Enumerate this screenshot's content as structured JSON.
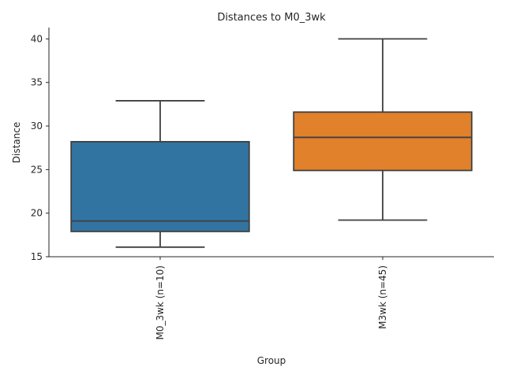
{
  "chart_data": {
    "type": "box",
    "title": "Distances to M0_3wk",
    "xlabel": "Group",
    "ylabel": "Distance",
    "ylim": [
      15,
      41.3
    ],
    "yticks": [
      15,
      20,
      25,
      30,
      35,
      40
    ],
    "categories": [
      "M0_3wk (n=10)",
      "M3wk (n=45)"
    ],
    "boxes": [
      {
        "category": "M0_3wk (n=10)",
        "whisker_low": 16.1,
        "q1": 17.9,
        "median": 19.1,
        "q3": 28.2,
        "whisker_high": 32.9,
        "color": "#3274a1"
      },
      {
        "category": "M3wk (n=45)",
        "whisker_low": 19.2,
        "q1": 24.9,
        "median": 28.7,
        "q3": 31.6,
        "whisker_high": 40.0,
        "color": "#e1812c"
      }
    ],
    "grid": false,
    "line_color": "#3f3f3f",
    "axis_color": "#262626"
  }
}
